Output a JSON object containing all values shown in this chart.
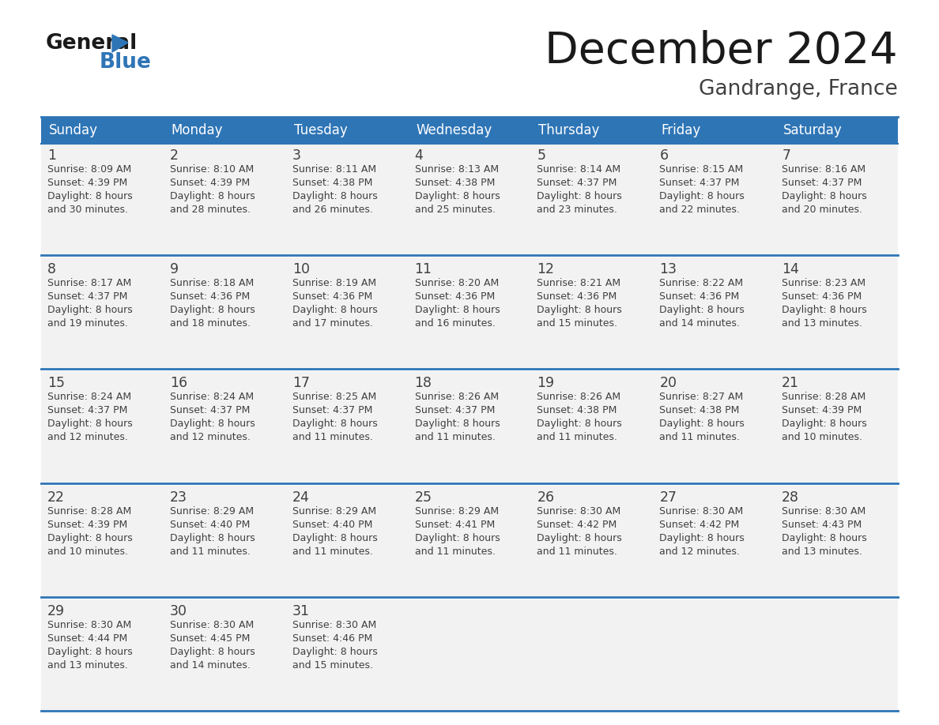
{
  "title": "December 2024",
  "subtitle": "Gandrange, France",
  "header_color": "#2e75b6",
  "header_text_color": "#ffffff",
  "day_names": [
    "Sunday",
    "Monday",
    "Tuesday",
    "Wednesday",
    "Thursday",
    "Friday",
    "Saturday"
  ],
  "weeks": [
    [
      {
        "day": 1,
        "sunrise": "8:09 AM",
        "sunset": "4:39 PM",
        "daylight": "8 hours\nand 30 minutes."
      },
      {
        "day": 2,
        "sunrise": "8:10 AM",
        "sunset": "4:39 PM",
        "daylight": "8 hours\nand 28 minutes."
      },
      {
        "day": 3,
        "sunrise": "8:11 AM",
        "sunset": "4:38 PM",
        "daylight": "8 hours\nand 26 minutes."
      },
      {
        "day": 4,
        "sunrise": "8:13 AM",
        "sunset": "4:38 PM",
        "daylight": "8 hours\nand 25 minutes."
      },
      {
        "day": 5,
        "sunrise": "8:14 AM",
        "sunset": "4:37 PM",
        "daylight": "8 hours\nand 23 minutes."
      },
      {
        "day": 6,
        "sunrise": "8:15 AM",
        "sunset": "4:37 PM",
        "daylight": "8 hours\nand 22 minutes."
      },
      {
        "day": 7,
        "sunrise": "8:16 AM",
        "sunset": "4:37 PM",
        "daylight": "8 hours\nand 20 minutes."
      }
    ],
    [
      {
        "day": 8,
        "sunrise": "8:17 AM",
        "sunset": "4:37 PM",
        "daylight": "8 hours\nand 19 minutes."
      },
      {
        "day": 9,
        "sunrise": "8:18 AM",
        "sunset": "4:36 PM",
        "daylight": "8 hours\nand 18 minutes."
      },
      {
        "day": 10,
        "sunrise": "8:19 AM",
        "sunset": "4:36 PM",
        "daylight": "8 hours\nand 17 minutes."
      },
      {
        "day": 11,
        "sunrise": "8:20 AM",
        "sunset": "4:36 PM",
        "daylight": "8 hours\nand 16 minutes."
      },
      {
        "day": 12,
        "sunrise": "8:21 AM",
        "sunset": "4:36 PM",
        "daylight": "8 hours\nand 15 minutes."
      },
      {
        "day": 13,
        "sunrise": "8:22 AM",
        "sunset": "4:36 PM",
        "daylight": "8 hours\nand 14 minutes."
      },
      {
        "day": 14,
        "sunrise": "8:23 AM",
        "sunset": "4:36 PM",
        "daylight": "8 hours\nand 13 minutes."
      }
    ],
    [
      {
        "day": 15,
        "sunrise": "8:24 AM",
        "sunset": "4:37 PM",
        "daylight": "8 hours\nand 12 minutes."
      },
      {
        "day": 16,
        "sunrise": "8:24 AM",
        "sunset": "4:37 PM",
        "daylight": "8 hours\nand 12 minutes."
      },
      {
        "day": 17,
        "sunrise": "8:25 AM",
        "sunset": "4:37 PM",
        "daylight": "8 hours\nand 11 minutes."
      },
      {
        "day": 18,
        "sunrise": "8:26 AM",
        "sunset": "4:37 PM",
        "daylight": "8 hours\nand 11 minutes."
      },
      {
        "day": 19,
        "sunrise": "8:26 AM",
        "sunset": "4:38 PM",
        "daylight": "8 hours\nand 11 minutes."
      },
      {
        "day": 20,
        "sunrise": "8:27 AM",
        "sunset": "4:38 PM",
        "daylight": "8 hours\nand 11 minutes."
      },
      {
        "day": 21,
        "sunrise": "8:28 AM",
        "sunset": "4:39 PM",
        "daylight": "8 hours\nand 10 minutes."
      }
    ],
    [
      {
        "day": 22,
        "sunrise": "8:28 AM",
        "sunset": "4:39 PM",
        "daylight": "8 hours\nand 10 minutes."
      },
      {
        "day": 23,
        "sunrise": "8:29 AM",
        "sunset": "4:40 PM",
        "daylight": "8 hours\nand 11 minutes."
      },
      {
        "day": 24,
        "sunrise": "8:29 AM",
        "sunset": "4:40 PM",
        "daylight": "8 hours\nand 11 minutes."
      },
      {
        "day": 25,
        "sunrise": "8:29 AM",
        "sunset": "4:41 PM",
        "daylight": "8 hours\nand 11 minutes."
      },
      {
        "day": 26,
        "sunrise": "8:30 AM",
        "sunset": "4:42 PM",
        "daylight": "8 hours\nand 11 minutes."
      },
      {
        "day": 27,
        "sunrise": "8:30 AM",
        "sunset": "4:42 PM",
        "daylight": "8 hours\nand 12 minutes."
      },
      {
        "day": 28,
        "sunrise": "8:30 AM",
        "sunset": "4:43 PM",
        "daylight": "8 hours\nand 13 minutes."
      }
    ],
    [
      {
        "day": 29,
        "sunrise": "8:30 AM",
        "sunset": "4:44 PM",
        "daylight": "8 hours\nand 13 minutes."
      },
      {
        "day": 30,
        "sunrise": "8:30 AM",
        "sunset": "4:45 PM",
        "daylight": "8 hours\nand 14 minutes."
      },
      {
        "day": 31,
        "sunrise": "8:30 AM",
        "sunset": "4:46 PM",
        "daylight": "8 hours\nand 15 minutes."
      },
      null,
      null,
      null,
      null
    ]
  ],
  "logo_general_color": "#1a1a1a",
  "logo_blue_color": "#2e75b6",
  "bg_color": "#ffffff",
  "cell_bg_color": "#f2f2f2",
  "separator_color": "#2e75b6",
  "text_color": "#404040"
}
